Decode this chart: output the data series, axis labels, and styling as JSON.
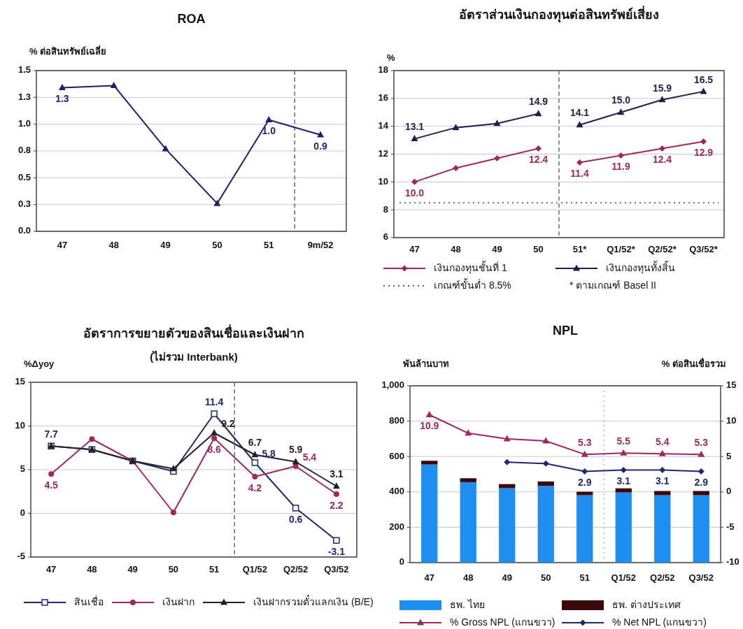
{
  "chart_data": [
    {
      "type": "line",
      "title": "ROA",
      "ylabel": "% ต่อสินทรัพย์เฉลี่ย",
      "categories": [
        "47",
        "48",
        "49",
        "50",
        "51",
        "9m/52"
      ],
      "ylim": [
        0,
        1.5
      ],
      "yticks": [
        {
          "value": 0,
          "label": "0.0"
        },
        {
          "value": 0.25,
          "label": "0.3"
        },
        0.5,
        {
          "value": 0.75,
          "label": "0.8"
        },
        {
          "value": 1,
          "label": "1.0"
        },
        {
          "value": 1.25,
          "label": "1.3"
        },
        1.5
      ],
      "grid": "y",
      "legend": false,
      "marker": "triangle",
      "series": [
        {
          "color": "#1f1f6e",
          "values": [
            1.34,
            1.36,
            0.77,
            0.26,
            1.04,
            0.9
          ],
          "value_labels": [
            "1.3",
            null,
            null,
            null,
            "1.0",
            "0.9"
          ]
        }
      ]
    },
    {
      "type": "line",
      "title": "อัตราส่วนเงินกองทุนต่อสินทรัพย์เสี่ยง",
      "ylabel": "%",
      "categories": [
        "47",
        "48",
        "49",
        "50",
        "51*",
        "Q1/52*",
        "Q2/52*",
        "Q3/52*"
      ],
      "ylim": [
        6,
        18
      ],
      "yticks": [
        6,
        8,
        10,
        12,
        14,
        16,
        18
      ],
      "grid": "y",
      "legend": "bottom",
      "series": [
        {
          "name": "เงินกองทุนชั้นที่ 1",
          "color": "#a0285a",
          "marker": "diamond",
          "values": [
            10.0,
            11.0,
            11.7,
            12.4,
            null,
            null,
            null,
            null
          ],
          "value_labels": [
            "10.0",
            null,
            null,
            "12.4",
            null,
            null,
            null,
            null
          ]
        },
        {
          "name": "เงินกองทุนทั้งสิ้น",
          "color": "#1f1f4e",
          "marker": "triangle",
          "values": [
            13.1,
            13.9,
            14.2,
            14.9,
            null,
            null,
            null,
            null
          ],
          "value_labels": [
            "13.1",
            null,
            null,
            "14.9",
            null,
            null,
            null,
            null
          ]
        },
        {
          "color": "#a0285a",
          "marker": "diamond",
          "values": [
            null,
            null,
            null,
            null,
            11.4,
            11.9,
            12.4,
            12.9
          ],
          "value_labels": [
            null,
            null,
            null,
            null,
            "11.4",
            "11.9",
            "12.4",
            "12.9"
          ]
        },
        {
          "color": "#1f1f4e",
          "marker": "triangle",
          "values": [
            null,
            null,
            null,
            null,
            14.1,
            15.0,
            15.9,
            16.5
          ],
          "value_labels": [
            null,
            null,
            null,
            null,
            "14.1",
            "15.0",
            "15.9",
            "16.5"
          ]
        }
      ],
      "ref_lines": [
        {
          "axis": "y",
          "value": 8.5,
          "label": "เกณฑ์ขั้นต่ำ 8.5%",
          "color": "#222222",
          "line_style": "dotted"
        }
      ],
      "annotations": [
        "* ตามเกณฑ์ Basel II"
      ]
    },
    {
      "type": "line",
      "title": "อัตราการขยายตัวของสินเชื่อและเงินฝาก",
      "subtitle": "(ไม่รวม Interbank)",
      "ylabel": "%Δyoy",
      "categories": [
        "47",
        "48",
        "49",
        "50",
        "51",
        "Q1/52",
        "Q2/52",
        "Q3/52"
      ],
      "ylim": [
        -5,
        15
      ],
      "yticks": [
        -5,
        0,
        5,
        10,
        15
      ],
      "grid": "y",
      "legend": "bottom",
      "series": [
        {
          "name": "สินเชื่อ",
          "color": "#1f2a6e",
          "marker": "square",
          "values": [
            7.7,
            7.3,
            6.0,
            4.8,
            11.4,
            5.8,
            0.6,
            -3.1
          ],
          "value_labels": [
            "7.7",
            null,
            null,
            null,
            "11.4",
            "5.8",
            "0.6",
            "-3.1"
          ]
        },
        {
          "name": "เงินฝาก",
          "color": "#a0285a",
          "marker": "circle",
          "values": [
            4.5,
            8.5,
            6.0,
            0.1,
            8.6,
            4.2,
            5.4,
            2.2
          ],
          "value_labels": [
            "4.5",
            null,
            null,
            null,
            "8.6",
            "4.2",
            "5.4",
            "2.2"
          ]
        },
        {
          "name": "เงินฝากรวมตั๋วแลกเงิน (B/E)",
          "color": "#222222",
          "marker": "triangle",
          "values": [
            7.7,
            7.3,
            6.0,
            5.1,
            9.2,
            6.7,
            5.9,
            3.1
          ],
          "value_labels": [
            null,
            null,
            null,
            null,
            "9.2",
            "6.7",
            "5.9",
            "3.1"
          ]
        }
      ]
    },
    {
      "type": "bar",
      "title": "NPL",
      "ylabel": "พันล้านบาท",
      "y2label": "% ต่อสินเชื่อรวม",
      "categories": [
        "47",
        "48",
        "49",
        "50",
        "51",
        "Q1/52",
        "Q2/52",
        "Q3/52"
      ],
      "stacked": true,
      "ylim": [
        0,
        1000
      ],
      "yticks": [
        0,
        200,
        400,
        600,
        800,
        {
          "value": 1000,
          "label": "1,000"
        }
      ],
      "y2lim": [
        -10,
        15
      ],
      "y2ticks": [
        -10,
        -5,
        0,
        5,
        10,
        15
      ],
      "grid": "y",
      "legend": "bottom",
      "series": [
        {
          "name": "ธพ. ไทย",
          "color": "#1e8ff0",
          "values": [
            555,
            455,
            421,
            434,
            381,
            397,
            381,
            381
          ]
        },
        {
          "name": "ธพ. ต่างประเทศ",
          "color": "#3a0808",
          "values": [
            21,
            22,
            23,
            25,
            20,
            23,
            24,
            24
          ]
        },
        {
          "name": "% Gross NPL (แกนขวา)",
          "type": "line",
          "axis": "y2",
          "marker": "triangle",
          "color": "#a0285a",
          "values": [
            10.9,
            8.3,
            7.5,
            7.2,
            5.3,
            5.5,
            5.4,
            5.3
          ],
          "value_labels": [
            "10.9",
            null,
            null,
            null,
            "5.3",
            "5.5",
            "5.4",
            "5.3"
          ]
        },
        {
          "name": "% Net NPL (แกนขวา)",
          "type": "line",
          "axis": "y2",
          "marker": "diamond",
          "color": "#1f2a6e",
          "values": [
            null,
            null,
            4.2,
            4.0,
            2.9,
            3.1,
            3.1,
            2.9
          ],
          "value_labels": [
            null,
            null,
            null,
            null,
            "2.9",
            "3.1",
            "3.1",
            "2.9"
          ]
        }
      ]
    }
  ]
}
